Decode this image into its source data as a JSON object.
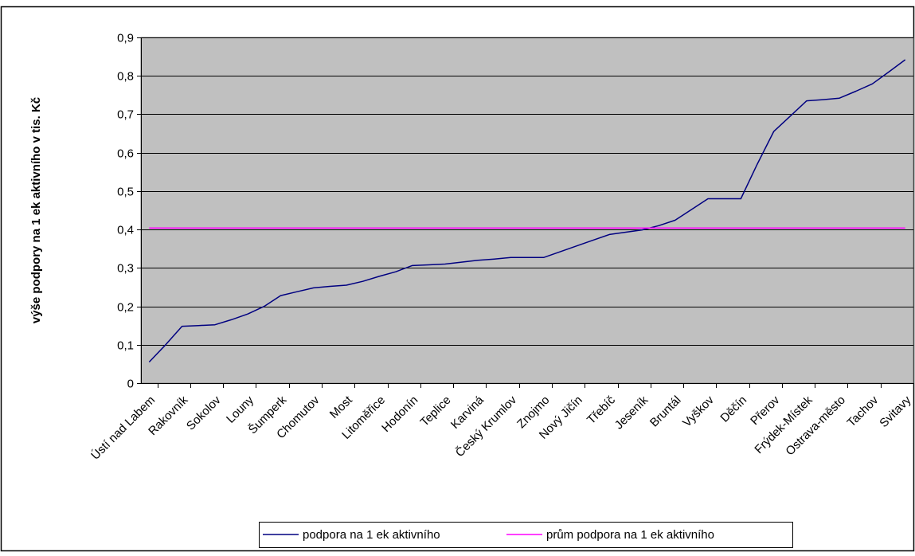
{
  "chart_data": {
    "type": "line",
    "ylabel": "výše podpory na 1 ek aktivního v tis. Kč",
    "xlabel": "",
    "ylim": [
      0,
      0.9
    ],
    "yticks": [
      0,
      0.1,
      0.2,
      0.3,
      0.4,
      0.5,
      0.6,
      0.7,
      0.8,
      0.9
    ],
    "ytick_labels": [
      "0",
      "0,1",
      "0,2",
      "0,3",
      "0,4",
      "0,5",
      "0,6",
      "0,7",
      "0,8",
      "0,9"
    ],
    "grid": true,
    "legend_position": "bottom",
    "categories": [
      "Ústí nad Labem",
      "",
      "Rakovník",
      "",
      "Sokolov",
      "",
      "Louny",
      "",
      "Šumperk",
      "",
      "Chomutov",
      "",
      "Most",
      "",
      "Litoměřice",
      "",
      "Hodonín",
      "",
      "Teplice",
      "",
      "Karviná",
      "",
      "Český Krumlov",
      "",
      "Znojmo",
      "",
      "Nový Jičín",
      "",
      "Třebíč",
      "",
      "Jeseník",
      "",
      "Bruntál",
      "",
      "Vyškov",
      "",
      "Děčín",
      "",
      "Přerov",
      "",
      "Frýdek-Místek",
      "",
      "Ostrava-město",
      "",
      "Tachov",
      "",
      "Svitavy"
    ],
    "series": [
      {
        "name": "podpora na 1 ek aktivního",
        "color": "#000080",
        "values": [
          0.055,
          0.1,
          0.148,
          0.15,
          0.152,
          0.165,
          0.18,
          0.2,
          0.228,
          0.238,
          0.248,
          0.252,
          0.255,
          0.265,
          0.278,
          0.29,
          0.306,
          0.308,
          0.31,
          0.315,
          0.32,
          0.323,
          0.327,
          0.327,
          0.327,
          0.342,
          0.357,
          0.372,
          0.387,
          0.393,
          0.399,
          0.41,
          0.424,
          0.452,
          0.48,
          0.48,
          0.48,
          0.57,
          0.655,
          0.695,
          0.735,
          0.738,
          0.742,
          0.76,
          0.779,
          0.81,
          0.842
        ]
      },
      {
        "name": "prům podpora na 1 ek aktivního",
        "color": "#FF00FF",
        "values": [
          0.404,
          0.404,
          0.404,
          0.404,
          0.404,
          0.404,
          0.404,
          0.404,
          0.404,
          0.404,
          0.404,
          0.404,
          0.404,
          0.404,
          0.404,
          0.404,
          0.404,
          0.404,
          0.404,
          0.404,
          0.404,
          0.404,
          0.404,
          0.404,
          0.404,
          0.404,
          0.404,
          0.404,
          0.404,
          0.404,
          0.404,
          0.404,
          0.404,
          0.404,
          0.404,
          0.404,
          0.404,
          0.404,
          0.404,
          0.404,
          0.404,
          0.404,
          0.404,
          0.404,
          0.404,
          0.404,
          0.404
        ]
      }
    ],
    "colors": {
      "plot_background": "#C0C0C0",
      "gridline": "#000000"
    }
  }
}
